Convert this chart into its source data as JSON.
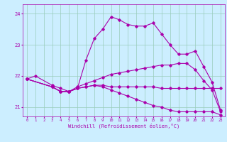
{
  "xlabel": "Windchill (Refroidissement éolien,°C)",
  "bg_color": "#cceeff",
  "line_color": "#aa00aa",
  "grid_color": "#99ccbb",
  "xlim": [
    -0.5,
    23.5
  ],
  "ylim": [
    20.7,
    24.3
  ],
  "yticks": [
    21,
    22,
    23,
    24
  ],
  "xticks": [
    0,
    1,
    2,
    3,
    4,
    5,
    6,
    7,
    8,
    9,
    10,
    11,
    12,
    13,
    14,
    15,
    16,
    17,
    18,
    19,
    20,
    21,
    22,
    23
  ],
  "series": [
    [
      21.9,
      22.0,
      null,
      21.7,
      21.6,
      21.5,
      21.6,
      22.5,
      23.2,
      23.5,
      23.9,
      23.8,
      23.65,
      23.6,
      23.6,
      23.7,
      23.35,
      23.0,
      22.7,
      22.7,
      22.8,
      22.3,
      21.8,
      20.9
    ],
    [
      21.9,
      null,
      null,
      21.65,
      21.5,
      21.5,
      21.65,
      21.75,
      21.85,
      21.95,
      22.05,
      22.1,
      22.15,
      22.2,
      22.25,
      22.3,
      22.35,
      22.35,
      22.4,
      22.4,
      22.2,
      21.85,
      21.55,
      20.85
    ],
    [
      21.9,
      null,
      null,
      21.65,
      21.5,
      21.5,
      21.6,
      21.65,
      21.7,
      21.65,
      21.55,
      21.45,
      21.35,
      21.25,
      21.15,
      21.05,
      21.0,
      20.9,
      20.85,
      20.85,
      20.85,
      20.85,
      20.85,
      20.75
    ],
    [
      21.9,
      null,
      null,
      21.65,
      21.5,
      21.5,
      21.6,
      21.65,
      21.7,
      21.7,
      21.65,
      21.65,
      21.65,
      21.65,
      21.65,
      21.65,
      21.6,
      21.6,
      21.6,
      21.6,
      21.6,
      21.6,
      21.6,
      21.6
    ]
  ]
}
